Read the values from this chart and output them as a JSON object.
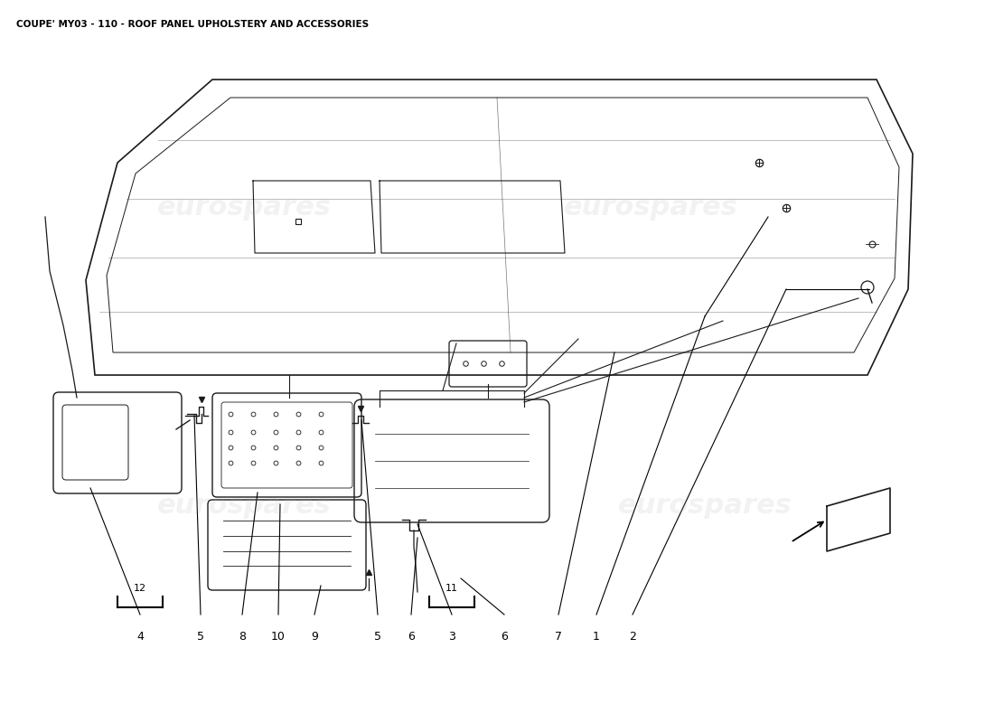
{
  "title": "COUPE' MY03 - 110 - ROOF PANEL UPHOLSTERY AND ACCESSORIES",
  "background_color": "#ffffff",
  "watermark_text": "eurospares",
  "fig_width": 11.0,
  "fig_height": 8.0,
  "line_color": "#1a1a1a",
  "lw": 1.0
}
